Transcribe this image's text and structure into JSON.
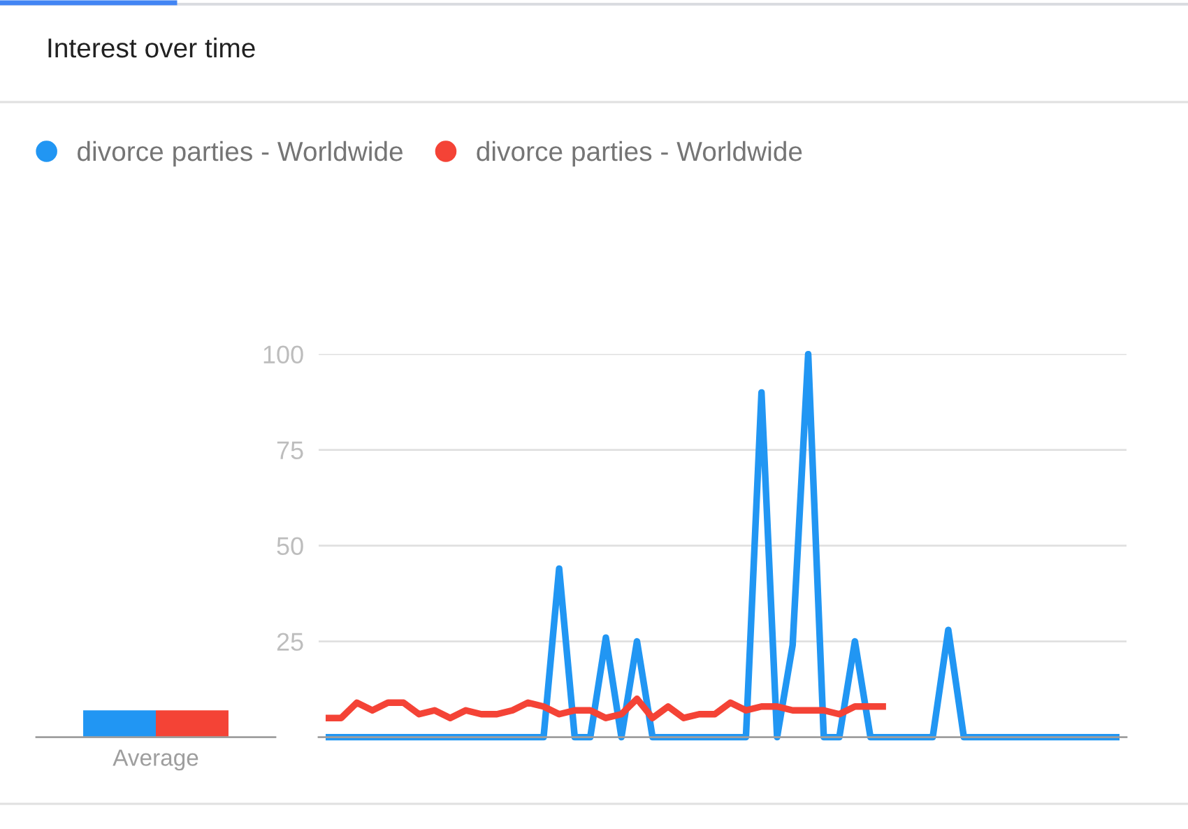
{
  "chart_data": [
    {
      "type": "bar",
      "title": "Interest over time",
      "categories": [
        "Average"
      ],
      "series": [
        {
          "color": "#2196f3",
          "values": [
            7
          ]
        },
        {
          "color": "#f44336",
          "values": [
            7
          ]
        }
      ],
      "ylim": [
        0,
        100
      ],
      "tick_labels": "x"
    },
    {
      "type": "line",
      "categories": [
        null,
        null,
        null,
        null,
        null,
        null,
        null,
        null,
        null,
        null,
        null,
        null,
        null,
        null,
        null,
        null,
        null,
        null,
        null,
        null,
        null,
        null,
        null,
        null,
        null,
        null,
        null,
        null,
        null,
        null,
        null,
        null,
        null,
        null,
        null,
        null,
        null,
        null,
        null,
        null,
        null,
        null,
        null,
        null,
        null,
        null,
        null,
        null,
        null,
        null,
        null,
        null
      ],
      "series": [
        {
          "name": "divorce parties - Worldwide",
          "color": "#2196f3",
          "values": [
            0,
            0,
            0,
            0,
            0,
            0,
            0,
            0,
            0,
            0,
            0,
            0,
            0,
            0,
            0,
            44,
            0,
            0,
            26,
            0,
            25,
            0,
            0,
            0,
            0,
            0,
            0,
            0,
            90,
            0,
            24,
            100,
            0,
            0,
            25,
            0,
            0,
            0,
            0,
            0,
            28,
            0,
            0,
            0,
            0,
            0,
            0,
            0,
            0,
            0,
            0,
            0
          ]
        },
        {
          "name": "divorce parties - Worldwide",
          "color": "#f44336",
          "values": [
            5,
            5,
            9,
            7,
            9,
            9,
            6,
            7,
            5,
            7,
            6,
            6,
            7,
            9,
            8,
            6,
            7,
            7,
            5,
            6,
            10,
            5,
            8,
            5,
            6,
            6,
            9,
            7,
            8,
            8,
            7,
            7,
            7,
            6,
            8,
            8,
            8,
            null,
            null,
            null,
            null,
            null,
            null,
            null,
            null,
            null,
            null,
            null,
            null,
            null,
            null,
            null
          ]
        }
      ],
      "ylim": [
        0,
        100
      ],
      "yticks": [
        25,
        50,
        75,
        100
      ],
      "grid": "y",
      "legend": "top left",
      "tick_labels": "y"
    }
  ]
}
